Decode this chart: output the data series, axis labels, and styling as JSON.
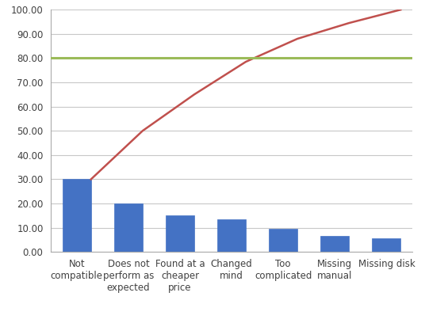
{
  "categories": [
    "Not\ncompatible",
    "Does not\nperform as\nexpected",
    "Found at a\ncheaper\nprice",
    "Changed\nmind",
    "Too\ncomplicated",
    "Missing\nmanual",
    "Missing disk"
  ],
  "values": [
    30,
    20,
    15,
    13.5,
    9.5,
    6.5,
    5.5
  ],
  "cumulative": [
    30,
    50,
    65,
    78.5,
    88,
    94.5,
    100
  ],
  "bar_color": "#4472C4",
  "line_color": "#C0504D",
  "hline_color": "#9BBB59",
  "hline_value": 80,
  "ylim": [
    0,
    100
  ],
  "yticks": [
    0,
    10,
    20,
    30,
    40,
    50,
    60,
    70,
    80,
    90,
    100
  ],
  "ytick_labels": [
    "0.00",
    "10.00",
    "20.00",
    "30.00",
    "40.00",
    "50.00",
    "60.00",
    "70.00",
    "80.00",
    "90.00",
    "100.00"
  ],
  "bg_color": "#FFFFFF",
  "grid_color": "#C8C8C8",
  "tick_fontsize": 8.5,
  "label_fontsize": 8.5
}
